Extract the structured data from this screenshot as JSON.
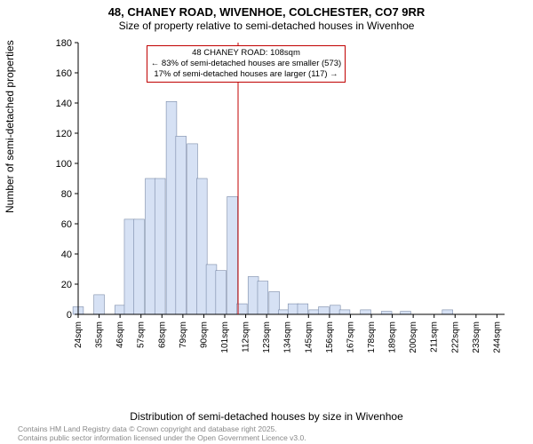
{
  "title_main": "48, CHANEY ROAD, WIVENHOE, COLCHESTER, CO7 9RR",
  "title_sub": "Size of property relative to semi-detached houses in Wivenhoe",
  "ylabel": "Number of semi-detached properties",
  "xlabel": "Distribution of semi-detached houses by size in Wivenhoe",
  "footer1": "Contains HM Land Registry data © Crown copyright and database right 2025.",
  "footer2": "Contains public sector information licensed under the Open Government Licence v3.0.",
  "annotation": {
    "line1": "48 CHANEY ROAD: 108sqm",
    "line2": "← 83% of semi-detached houses are smaller (573)",
    "line3": "17% of semi-detached houses are larger (117) →"
  },
  "chart": {
    "type": "histogram",
    "bar_fill": "#d6e1f4",
    "bar_stroke": "#7a8aa8",
    "background": "#ffffff",
    "axis_color": "#000000",
    "marker_line_color": "#c00000",
    "marker_x": 108,
    "annot_border": "#c00000",
    "ylim": [
      0,
      180
    ],
    "ytick_step": 20,
    "xtick_step": 11,
    "xtick_start": 24,
    "xtick_count": 21,
    "xtick_suffix": "sqm",
    "bars": [
      {
        "x": 24,
        "h": 5
      },
      {
        "x": 35,
        "h": 13
      },
      {
        "x": 46,
        "h": 6
      },
      {
        "x": 51,
        "h": 63
      },
      {
        "x": 56,
        "h": 63
      },
      {
        "x": 62,
        "h": 90
      },
      {
        "x": 67,
        "h": 90
      },
      {
        "x": 73,
        "h": 141
      },
      {
        "x": 78,
        "h": 118
      },
      {
        "x": 84,
        "h": 113
      },
      {
        "x": 89,
        "h": 90
      },
      {
        "x": 94,
        "h": 33
      },
      {
        "x": 99,
        "h": 29
      },
      {
        "x": 105,
        "h": 78
      },
      {
        "x": 110,
        "h": 7
      },
      {
        "x": 116,
        "h": 25
      },
      {
        "x": 121,
        "h": 22
      },
      {
        "x": 127,
        "h": 15
      },
      {
        "x": 132,
        "h": 3
      },
      {
        "x": 137,
        "h": 7
      },
      {
        "x": 142,
        "h": 7
      },
      {
        "x": 148,
        "h": 3
      },
      {
        "x": 153,
        "h": 5
      },
      {
        "x": 159,
        "h": 6
      },
      {
        "x": 164,
        "h": 3
      },
      {
        "x": 175,
        "h": 3
      },
      {
        "x": 186,
        "h": 2
      },
      {
        "x": 196,
        "h": 2
      },
      {
        "x": 218,
        "h": 3
      }
    ],
    "bar_width_x": 5.5
  },
  "label_fontsize": 12,
  "tick_fontsize": 10
}
